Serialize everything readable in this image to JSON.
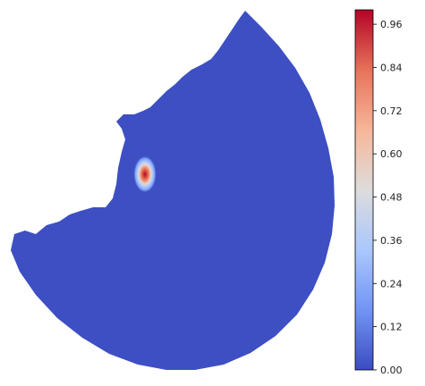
{
  "chart_data": {
    "type": "heatmap",
    "title": "",
    "xlabel": "",
    "ylabel": "",
    "description_of_field": "values near 0 everywhere except a single localized peak",
    "field": {
      "background_value": 0.0,
      "peak_value": 1.0,
      "colormap": "coolwarm"
    },
    "colorbar": {
      "ticks": [
        "0.00",
        "0.12",
        "0.24",
        "0.36",
        "0.48",
        "0.60",
        "0.72",
        "0.84",
        "0.96"
      ],
      "range": [
        0.0,
        1.0
      ],
      "colors": [
        "#3b4cc0",
        "#6f92f3",
        "#aac7fd",
        "#dddcdc",
        "#f7b89c",
        "#e7745b",
        "#b40426"
      ]
    },
    "axes": {
      "visible": false,
      "grid": false
    }
  }
}
